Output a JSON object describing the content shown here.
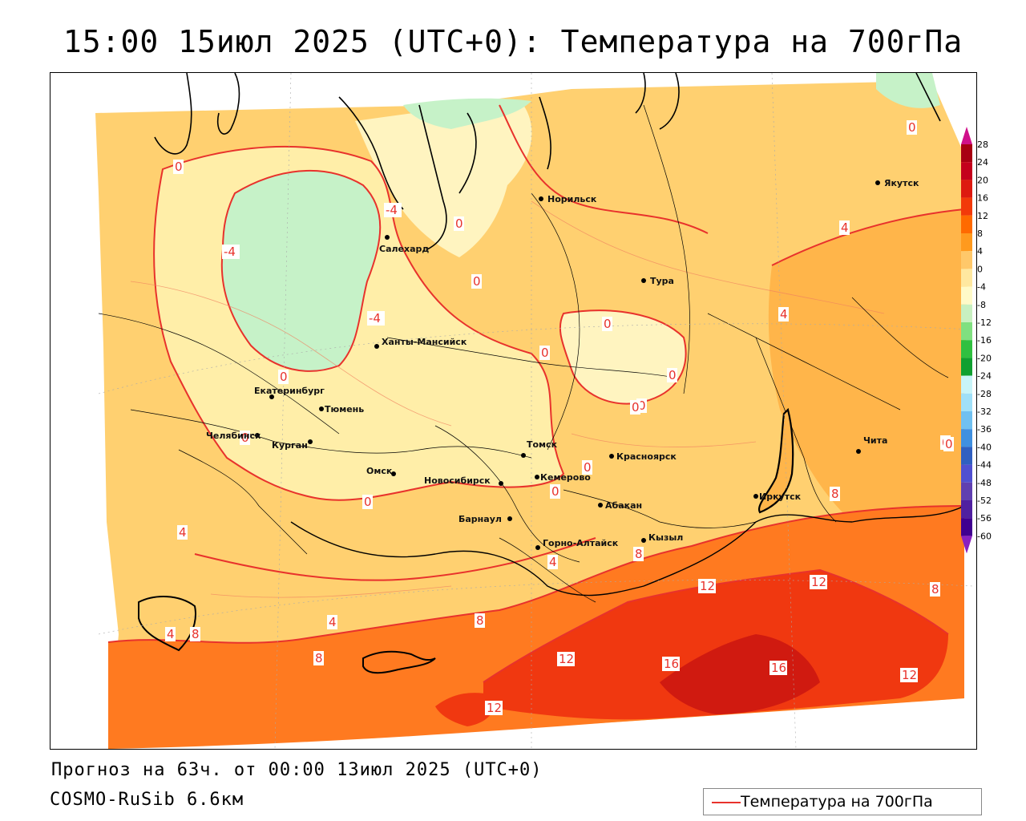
{
  "header": {
    "title": "15:00 15июл 2025 (UTC+0): Температура на 700гПа"
  },
  "footer": {
    "forecast": "Прогноз на 63ч. от 00:00 13июл 2025 (UTC+0)",
    "model": "COSMO-RuSib 6.6км"
  },
  "legend": {
    "label": "Температура на 700гПа",
    "line_color": "#e8322c"
  },
  "colorbar": {
    "ticks": [
      "28",
      "24",
      "20",
      "16",
      "12",
      "8",
      "4",
      "0",
      "-4",
      "-8",
      "-12",
      "-16",
      "-20",
      "-24",
      "-28",
      "-32",
      "-36",
      "-40",
      "-44",
      "-48",
      "-52",
      "-56",
      "-60"
    ],
    "colors": [
      "#a80012",
      "#c4001c",
      "#dd1a10",
      "#f23a0a",
      "#ff6a00",
      "#ff9a1e",
      "#ffc86a",
      "#ffe8a0",
      "#fffac8",
      "#c8f0c0",
      "#80e080",
      "#30c040",
      "#10a030",
      "#c8f4f8",
      "#a0e0f8",
      "#70c0f0",
      "#4090e0",
      "#3060c0",
      "#5050d0",
      "#6040b0",
      "#5020a0",
      "#400090"
    ]
  },
  "cities": [
    {
      "name": "Норильск"
    },
    {
      "name": "Якутск"
    },
    {
      "name": "Салехард"
    },
    {
      "name": "Тура"
    },
    {
      "name": "Ханты-Мансийск"
    },
    {
      "name": "Екатеринбург"
    },
    {
      "name": "Тюмень"
    },
    {
      "name": "Челябинск"
    },
    {
      "name": "Курган"
    },
    {
      "name": "Омск"
    },
    {
      "name": "Новосибирск"
    },
    {
      "name": "Томск"
    },
    {
      "name": "Кемерово"
    },
    {
      "name": "Красноярск"
    },
    {
      "name": "Барнаул"
    },
    {
      "name": "Абакан"
    },
    {
      "name": "Иркутск"
    },
    {
      "name": "Чита"
    },
    {
      "name": "Горно-Алтайск"
    },
    {
      "name": "Кызыл"
    }
  ],
  "isotherm_labels": [
    "0",
    "0",
    "-4",
    "0",
    "0",
    "-4",
    "4",
    "-4",
    "0",
    "0",
    "0",
    "0",
    "4",
    "0",
    "0",
    "0",
    "0",
    "0",
    "0",
    "0",
    "0",
    "4",
    "4",
    "8",
    "8",
    "4",
    "4",
    "8",
    "8",
    "12",
    "12",
    "12",
    "16",
    "16",
    "12",
    "8",
    "8",
    "12"
  ]
}
